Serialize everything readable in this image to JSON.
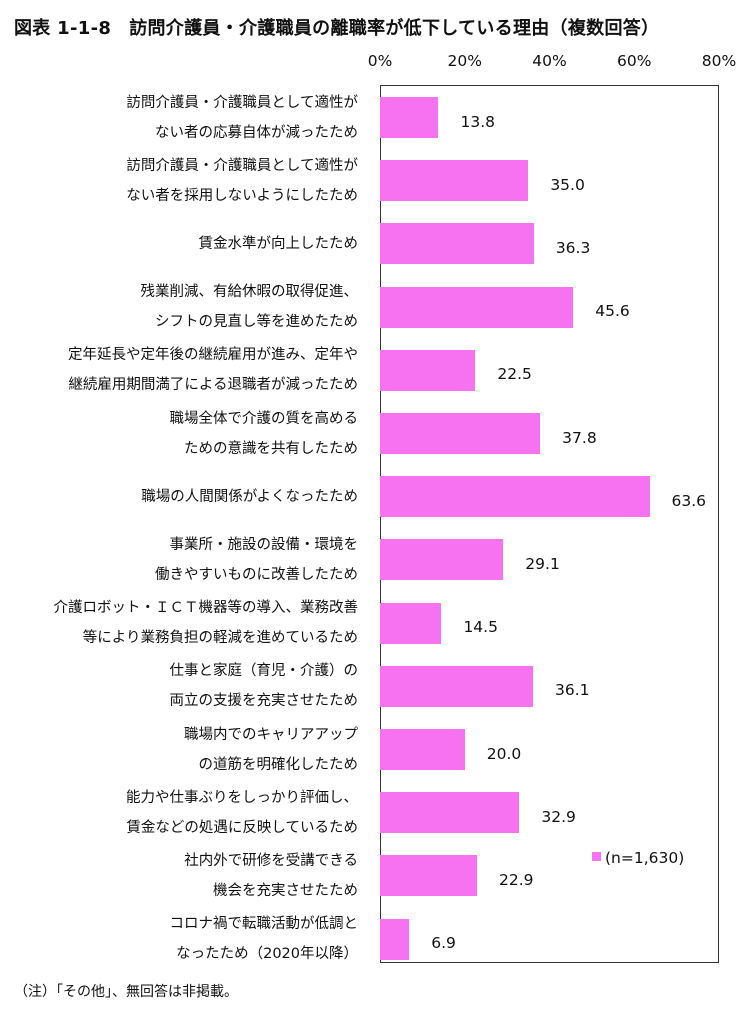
{
  "title_number": "図表 1-1-8",
  "title_text": "訪問介護員・介護職員の離職率が低下している理由（複数回答）",
  "note": "（注）「その他」、無回答は非掲載。",
  "chart_data": {
    "type": "bar",
    "orientation": "horizontal",
    "xlim": [
      0,
      80
    ],
    "ticks": [
      "0%",
      "20%",
      "40%",
      "60%",
      "80%"
    ],
    "categories": [
      [
        "訪問介護員・介護職員として適性が",
        "ない者の応募自体が減ったため"
      ],
      [
        "訪問介護員・介護職員として適性が",
        "ない者を採用しないようにしたため"
      ],
      [
        "賃金水準が向上したため"
      ],
      [
        "残業削減、有給休暇の取得促進、",
        "シフトの見直し等を進めたため"
      ],
      [
        "定年延長や定年後の継続雇用が進み、定年や",
        "継続雇用期間満了による退職者が減ったため"
      ],
      [
        "職場全体で介護の質を高める",
        "ための意識を共有したため"
      ],
      [
        "職場の人間関係がよくなったため"
      ],
      [
        "事業所・施設の設備・環境を",
        "働きやすいものに改善したため"
      ],
      [
        "介護ロボット・ＩＣＴ機器等の導入、業務改善",
        "等により業務負担の軽減を進めているため"
      ],
      [
        "仕事と家庭（育児・介護）の",
        "両立の支援を充実させたため"
      ],
      [
        "職場内でのキャリアアップ",
        "の道筋を明確化したため"
      ],
      [
        "能力や仕事ぶりをしっかり評価し、",
        "賃金などの処遇に反映しているため"
      ],
      [
        "社内外で研修を受講できる",
        "機会を充実させたため"
      ],
      [
        "コロナ禍で転職活動が低調と",
        "なったため（2020年以降）"
      ]
    ],
    "values": [
      13.8,
      35.0,
      36.3,
      45.6,
      22.5,
      37.8,
      63.6,
      29.1,
      14.5,
      36.1,
      20.0,
      32.9,
      22.9,
      6.9
    ],
    "value_labels": [
      "13.8",
      "35.0",
      "36.3",
      "45.6",
      "22.5",
      "37.8",
      "63.6",
      "29.1",
      "14.5",
      "36.1",
      "20.0",
      "32.9",
      "22.9",
      "6.9"
    ],
    "legend": "(n=1,630)",
    "legend_position": "bottom-right",
    "bar_color": "#f772f0",
    "grid": false
  }
}
